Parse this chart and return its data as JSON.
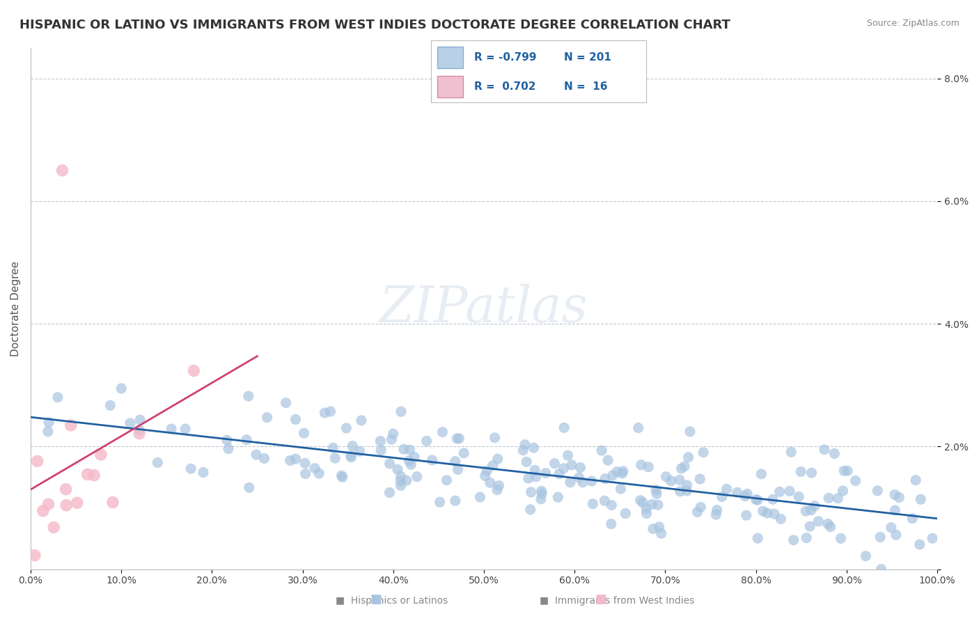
{
  "title": "HISPANIC OR LATINO VS IMMIGRANTS FROM WEST INDIES DOCTORATE DEGREE CORRELATION CHART",
  "source": "Source: ZipAtlas.com",
  "xlabel": "",
  "ylabel": "Doctorate Degree",
  "watermark": "ZIPatlas",
  "blue_R": -0.799,
  "blue_N": 201,
  "pink_R": 0.702,
  "pink_N": 16,
  "blue_color": "#a8c4e0",
  "pink_color": "#f4b8c8",
  "blue_line_color": "#2060a0",
  "pink_line_color": "#d04070",
  "legend_box_blue": "#b8d0e8",
  "legend_box_pink": "#f0c0d0",
  "background_color": "#ffffff",
  "grid_color": "#c0c8d0",
  "xlim": [
    0,
    100
  ],
  "ylim": [
    0,
    8.5
  ],
  "xticks": [
    0,
    10,
    20,
    30,
    40,
    50,
    60,
    70,
    80,
    90,
    100
  ],
  "xtick_labels": [
    "0.0%",
    "10.0%",
    "20.0%",
    "30.0%",
    "40.0%",
    "50.0%",
    "60.0%",
    "70.0%",
    "80.0%",
    "90.0%",
    "100.0%"
  ],
  "yticks": [
    0,
    2,
    4,
    6,
    8
  ],
  "ytick_labels": [
    "",
    "2.0%",
    "4.0%",
    "6.0%",
    "8.0%"
  ],
  "blue_seed": 42,
  "pink_seed": 77,
  "figsize": [
    14.06,
    8.92
  ],
  "dpi": 100
}
